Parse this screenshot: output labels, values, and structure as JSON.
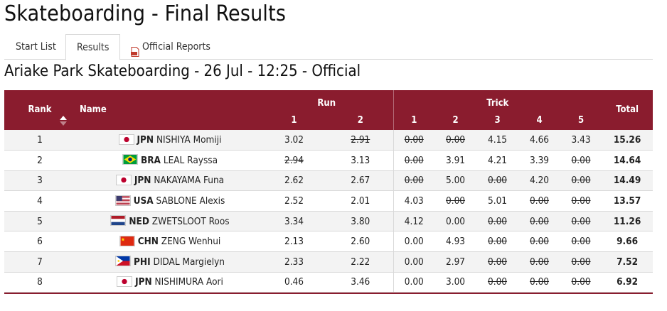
{
  "page": {
    "title": "Skateboarding - Final Results"
  },
  "tabs": [
    {
      "label": "Start List",
      "active": false
    },
    {
      "label": "Results",
      "active": true
    },
    {
      "label": "Official Reports",
      "active": false,
      "icon": "pdf-icon"
    }
  ],
  "subtitle": "Ariake Park Skateboarding - 26 Jul - 12:25 - Official",
  "table": {
    "headers": {
      "rank": "Rank",
      "name": "Name",
      "run": "Run",
      "trick": "Trick",
      "total": "Total",
      "run_cols": [
        "1",
        "2"
      ],
      "trick_cols": [
        "1",
        "2",
        "3",
        "4",
        "5"
      ]
    },
    "colors": {
      "header_bg": "#8a1c2e",
      "row_alt": "#f3f3f3"
    },
    "rows": [
      {
        "rank": "1",
        "noc": "JPN",
        "name": "NISHIYA Momiji",
        "flag": "jpn",
        "scores": [
          "3.02",
          "2.91",
          "0.00",
          "0.00",
          "4.15",
          "4.66",
          "3.43"
        ],
        "dropped": [
          false,
          true,
          true,
          true,
          false,
          false,
          false
        ],
        "total": "15.26"
      },
      {
        "rank": "2",
        "noc": "BRA",
        "name": "LEAL Rayssa",
        "flag": "bra",
        "scores": [
          "2.94",
          "3.13",
          "0.00",
          "3.91",
          "4.21",
          "3.39",
          "0.00"
        ],
        "dropped": [
          true,
          false,
          true,
          false,
          false,
          false,
          true
        ],
        "total": "14.64"
      },
      {
        "rank": "3",
        "noc": "JPN",
        "name": "NAKAYAMA Funa",
        "flag": "jpn",
        "scores": [
          "2.62",
          "2.67",
          "0.00",
          "5.00",
          "0.00",
          "4.20",
          "0.00"
        ],
        "dropped": [
          false,
          false,
          true,
          false,
          true,
          false,
          true
        ],
        "total": "14.49"
      },
      {
        "rank": "4",
        "noc": "USA",
        "name": "SABLONE Alexis",
        "flag": "usa",
        "scores": [
          "2.52",
          "2.01",
          "4.03",
          "0.00",
          "5.01",
          "0.00",
          "0.00"
        ],
        "dropped": [
          false,
          false,
          false,
          true,
          false,
          true,
          true
        ],
        "total": "13.57"
      },
      {
        "rank": "5",
        "noc": "NED",
        "name": "ZWETSLOOT Roos",
        "flag": "ned",
        "scores": [
          "3.34",
          "3.80",
          "4.12",
          "0.00",
          "0.00",
          "0.00",
          "0.00"
        ],
        "dropped": [
          false,
          false,
          false,
          false,
          true,
          true,
          true
        ],
        "total": "11.26"
      },
      {
        "rank": "6",
        "noc": "CHN",
        "name": "ZENG Wenhui",
        "flag": "chn",
        "scores": [
          "2.13",
          "2.60",
          "0.00",
          "4.93",
          "0.00",
          "0.00",
          "0.00"
        ],
        "dropped": [
          false,
          false,
          false,
          false,
          true,
          true,
          true
        ],
        "total": "9.66"
      },
      {
        "rank": "7",
        "noc": "PHI",
        "name": "DIDAL Margielyn",
        "flag": "phi",
        "scores": [
          "2.33",
          "2.22",
          "0.00",
          "2.97",
          "0.00",
          "0.00",
          "0.00"
        ],
        "dropped": [
          false,
          false,
          false,
          false,
          true,
          true,
          true
        ],
        "total": "7.52"
      },
      {
        "rank": "8",
        "noc": "JPN",
        "name": "NISHIMURA Aori",
        "flag": "jpn",
        "scores": [
          "0.46",
          "3.46",
          "0.00",
          "3.00",
          "0.00",
          "0.00",
          "0.00"
        ],
        "dropped": [
          false,
          false,
          false,
          false,
          true,
          true,
          true
        ],
        "total": "6.92"
      }
    ]
  }
}
